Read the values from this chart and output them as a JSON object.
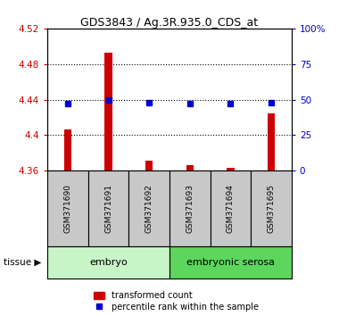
{
  "title": "GDS3843 / Ag.3R.935.0_CDS_at",
  "samples": [
    "GSM371690",
    "GSM371691",
    "GSM371692",
    "GSM371693",
    "GSM371694",
    "GSM371695"
  ],
  "red_values": [
    4.406,
    4.493,
    4.371,
    4.366,
    4.363,
    4.424
  ],
  "blue_values": [
    47,
    50,
    48,
    47,
    47,
    48
  ],
  "ylim_left": [
    4.36,
    4.52
  ],
  "ylim_right": [
    0,
    100
  ],
  "yticks_left": [
    4.36,
    4.4,
    4.44,
    4.48,
    4.52
  ],
  "yticks_right": [
    0,
    25,
    50,
    75,
    100
  ],
  "ytick_labels_left": [
    "4.36",
    "4.4",
    "4.44",
    "4.48",
    "4.52"
  ],
  "ytick_labels_right": [
    "0",
    "25",
    "50",
    "75",
    "100%"
  ],
  "tissue_groups": [
    {
      "label": "embryo",
      "indices": [
        0,
        1,
        2
      ],
      "color": "#c8f5c8"
    },
    {
      "label": "embryonic serosa",
      "indices": [
        3,
        4,
        5
      ],
      "color": "#5cd65c"
    }
  ],
  "bar_color": "#cc0000",
  "dot_color": "#0000cc",
  "bar_width": 0.18,
  "grid_color": "#000000",
  "bg_color": "#ffffff",
  "plot_bg_color": "#ffffff",
  "box_bg_color": "#c8c8c8",
  "legend_red_label": "transformed count",
  "legend_blue_label": "percentile rank within the sample",
  "tissue_label": "tissue",
  "left_axis_color": "#cc0000",
  "right_axis_color": "#0000cc",
  "grid_dotted_at": [
    4.4,
    4.44,
    4.48
  ]
}
